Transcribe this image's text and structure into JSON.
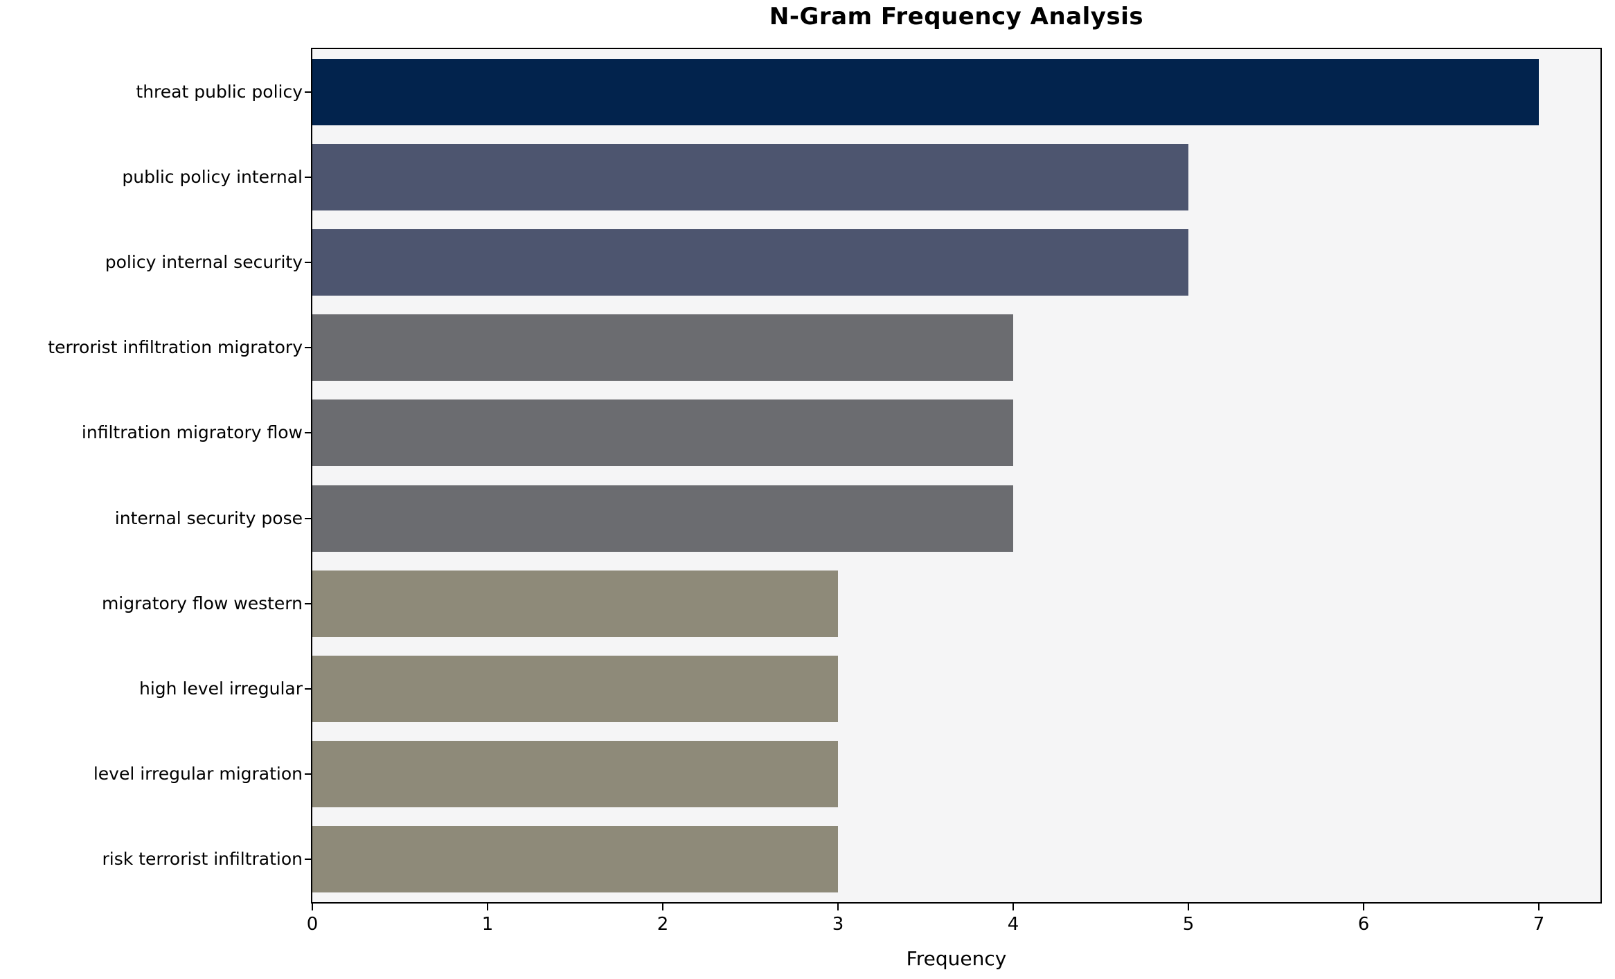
{
  "chart_data": {
    "type": "bar",
    "orientation": "horizontal",
    "title": "N-Gram Frequency Analysis",
    "xlabel": "Frequency",
    "ylabel": "",
    "categories": [
      "threat public policy",
      "public policy internal",
      "policy internal security",
      "terrorist infiltration migratory",
      "infiltration migratory flow",
      "internal security pose",
      "migratory flow western",
      "high level irregular",
      "level irregular migration",
      "risk terrorist infiltration"
    ],
    "values": [
      7,
      5,
      5,
      4,
      4,
      4,
      3,
      3,
      3,
      3
    ],
    "bar_colors": [
      "#02234d",
      "#4d556f",
      "#4d556f",
      "#6b6c70",
      "#6b6c70",
      "#6b6c70",
      "#8e8a79",
      "#8e8a79",
      "#8e8a79",
      "#8e8a79"
    ],
    "x_ticks": [
      0,
      1,
      2,
      3,
      4,
      5,
      6,
      7
    ],
    "xlim": [
      0,
      7.35
    ],
    "grid": false,
    "legend_position": "none",
    "plot_background": "#f5f5f6",
    "figure_background": "#ffffff",
    "axis_color": "#000000",
    "text_color": "#000000"
  }
}
